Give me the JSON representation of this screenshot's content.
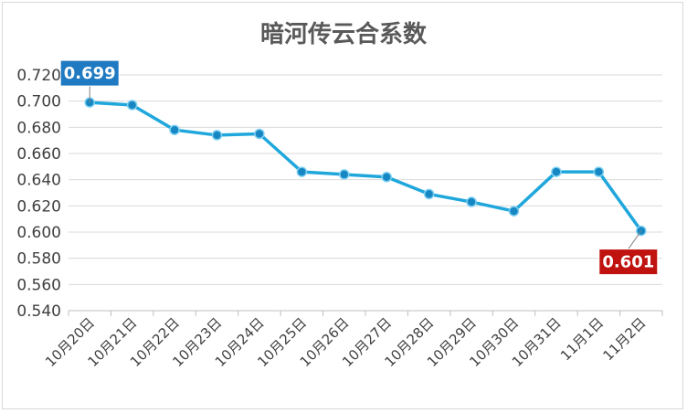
{
  "chart_data": {
    "type": "line",
    "title": "暗河传云合系数",
    "categories": [
      "10月20日",
      "10月21日",
      "10月22日",
      "10月23日",
      "10月24日",
      "10月25日",
      "10月26日",
      "10月27日",
      "10月28日",
      "10月29日",
      "10月30日",
      "10月31日",
      "11月1日",
      "11月2日"
    ],
    "series": [
      {
        "values": [
          0.699,
          0.697,
          0.678,
          0.674,
          0.675,
          0.646,
          0.644,
          0.642,
          0.629,
          0.623,
          0.616,
          0.646,
          0.646,
          0.601
        ]
      }
    ],
    "ylim": [
      0.54,
      0.72
    ],
    "yticks": [
      "0.540",
      "0.560",
      "0.580",
      "0.600",
      "0.620",
      "0.640",
      "0.660",
      "0.680",
      "0.700",
      "0.720"
    ],
    "grid": true,
    "colors": {
      "line": "#1fa7dc",
      "marker": "#1787c4",
      "max_callout": "#1f7ac2",
      "min_callout": "#c0120f",
      "grid": "#d9d9d9"
    },
    "annotations": [
      {
        "label": "0.699",
        "category": "10月20日",
        "kind": "max"
      },
      {
        "label": "0.601",
        "category": "11月2日",
        "kind": "min"
      }
    ]
  }
}
